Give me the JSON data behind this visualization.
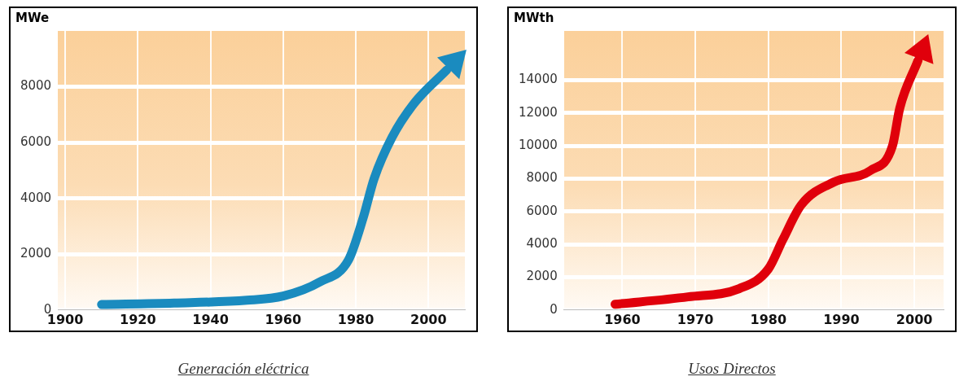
{
  "chart_data": [
    {
      "type": "line",
      "ylabel": "MWe",
      "x": [
        1910,
        1930,
        1950,
        1960,
        1970,
        1978,
        1982,
        1985,
        1990,
        1996,
        2005
      ],
      "series": [
        {
          "color": "#1a8bbf",
          "values": [
            200,
            250,
            350,
            500,
            1000,
            1800,
            3300,
            4700,
            6200,
            7400,
            8600
          ]
        }
      ],
      "xlim": [
        1898,
        2010
      ],
      "xticks": [
        1900,
        1920,
        1940,
        1960,
        1980,
        2000
      ],
      "ylim": [
        0,
        10000
      ],
      "yticks": [
        0,
        2000,
        4000,
        6000,
        8000
      ],
      "grid": true,
      "annotations": [
        "Generación eléctrica"
      ]
    },
    {
      "type": "line",
      "ylabel": "MWth",
      "x": [
        1959,
        1969,
        1976,
        1980,
        1982,
        1984.5,
        1989,
        1994,
        1997,
        1998,
        2000.5
      ],
      "series": [
        {
          "color": "#e0000b",
          "values": [
            350,
            800,
            1300,
            2500,
            4300,
            6400,
            7800,
            8500,
            10000,
            12300,
            15200
          ]
        }
      ],
      "xlim": [
        1952,
        2004
      ],
      "xticks": [
        1960,
        1970,
        1980,
        1990,
        2000
      ],
      "ylim": [
        0,
        17000
      ],
      "yticks": [
        0,
        2000,
        4000,
        6000,
        8000,
        10000,
        12000,
        14000
      ],
      "grid": true,
      "annotations": [
        "Usos Directos"
      ]
    }
  ]
}
